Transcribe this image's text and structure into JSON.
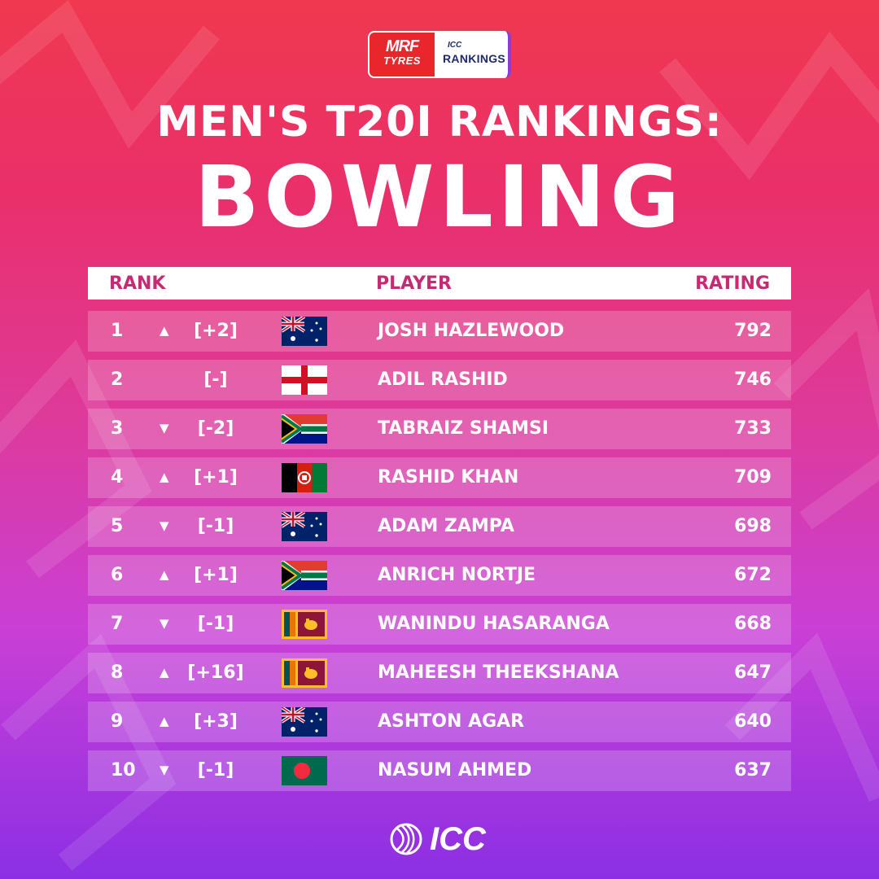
{
  "logo": {
    "brand": "MRF",
    "brand_sub": "TYRES",
    "icc_small": "ICC",
    "icc_big": "RANKINGS"
  },
  "title": {
    "line1": "MEN'S T20I RANKINGS:",
    "line2": "BOWLING"
  },
  "table": {
    "headers": {
      "rank": "RANK",
      "player": "PLAYER",
      "rating": "RATING"
    },
    "rows": [
      {
        "rank": "1",
        "arrow": "▲",
        "change": "[+2]",
        "flag": "australia-flag",
        "player": "JOSH HAZLEWOOD",
        "rating": "792"
      },
      {
        "rank": "2",
        "arrow": "",
        "change": "[-]",
        "flag": "england-flag",
        "player": "ADIL RASHID",
        "rating": "746"
      },
      {
        "rank": "3",
        "arrow": "▼",
        "change": "[-2]",
        "flag": "south-africa-flag",
        "player": "TABRAIZ SHAMSI",
        "rating": "733"
      },
      {
        "rank": "4",
        "arrow": "▲",
        "change": "[+1]",
        "flag": "afghanistan-flag",
        "player": "RASHID KHAN",
        "rating": "709"
      },
      {
        "rank": "5",
        "arrow": "▼",
        "change": "[-1]",
        "flag": "australia-flag",
        "player": "ADAM ZAMPA",
        "rating": "698"
      },
      {
        "rank": "6",
        "arrow": "▲",
        "change": "[+1]",
        "flag": "south-africa-flag",
        "player": "ANRICH NORTJE",
        "rating": "672"
      },
      {
        "rank": "7",
        "arrow": "▼",
        "change": "[-1]",
        "flag": "sri-lanka-flag",
        "player": "WANINDU HASARANGA",
        "rating": "668"
      },
      {
        "rank": "8",
        "arrow": "▲",
        "change": "[+16]",
        "flag": "sri-lanka-flag",
        "player": "MAHEESH THEEKSHANA",
        "rating": "647"
      },
      {
        "rank": "9",
        "arrow": "▲",
        "change": "[+3]",
        "flag": "australia-flag",
        "player": "ASHTON AGAR",
        "rating": "640"
      },
      {
        "rank": "10",
        "arrow": "▼",
        "change": "[-1]",
        "flag": "bangladesh-flag",
        "player": "NASUM AHMED",
        "rating": "637"
      }
    ]
  },
  "footer": {
    "logo_text": "ICC",
    "icon": "cricket-ball-icon"
  },
  "colors": {
    "header_text": "#c72a73",
    "bg_top": "#f0384f",
    "bg_bottom": "#8c2fe4"
  }
}
